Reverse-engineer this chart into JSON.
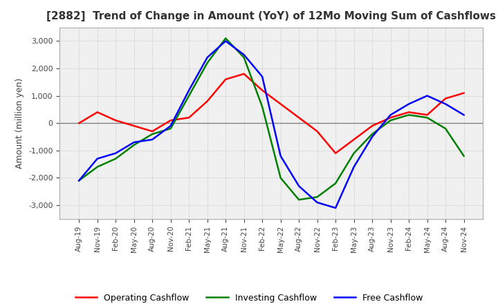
{
  "title": "[2882]  Trend of Change in Amount (YoY) of 12Mo Moving Sum of Cashflows",
  "ylabel": "Amount (million yen)",
  "ylim": [
    -3500,
    3500
  ],
  "yticks": [
    -3000,
    -2000,
    -1000,
    0,
    1000,
    2000,
    3000
  ],
  "x_labels": [
    "Aug-19",
    "Nov-19",
    "Feb-20",
    "May-20",
    "Aug-20",
    "Nov-20",
    "Feb-21",
    "May-21",
    "Aug-21",
    "Nov-21",
    "Feb-22",
    "May-22",
    "Aug-22",
    "Nov-22",
    "Feb-23",
    "May-23",
    "Aug-23",
    "Nov-23",
    "Feb-24",
    "May-24",
    "Aug-24",
    "Nov-24"
  ],
  "operating": [
    0,
    400,
    100,
    -100,
    -300,
    100,
    200,
    800,
    1600,
    1800,
    1200,
    700,
    200,
    -300,
    -1100,
    -600,
    -100,
    200,
    400,
    300,
    900,
    1100
  ],
  "investing": [
    -2100,
    -1600,
    -1300,
    -800,
    -400,
    -200,
    1000,
    2200,
    3100,
    2400,
    600,
    -2000,
    -2800,
    -2700,
    -2200,
    -1100,
    -400,
    100,
    300,
    200,
    -200,
    -1200
  ],
  "free_cashflow": [
    -2100,
    -1300,
    -1100,
    -700,
    -600,
    -100,
    1200,
    2400,
    3000,
    2500,
    1700,
    -1200,
    -2300,
    -2900,
    -3100,
    -1600,
    -500,
    300,
    700,
    1000,
    700,
    300
  ],
  "line_colors": {
    "operating": "#ff0000",
    "investing": "#008000",
    "free_cashflow": "#0000ff"
  },
  "legend_labels": [
    "Operating Cashflow",
    "Investing Cashflow",
    "Free Cashflow"
  ],
  "background_color": "#ffffff",
  "plot_bg_color": "#f0f0f0",
  "grid_color": "#aaaaaa",
  "title_color": "#333333",
  "zero_line_color": "#808080"
}
